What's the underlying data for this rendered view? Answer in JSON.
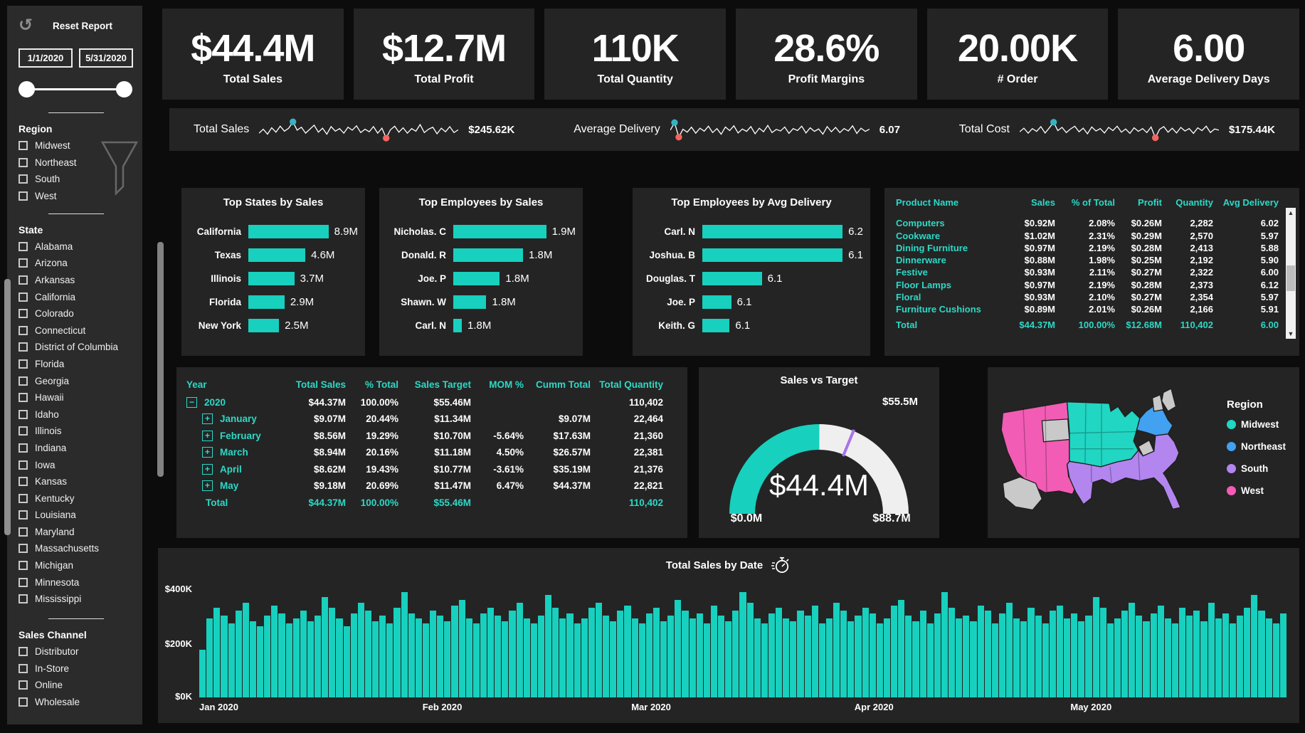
{
  "accent": "#17d0be",
  "teal_text": "#2cd9c7",
  "spark_max_color": "#36b3c0",
  "spark_min_color": "#f4655f",
  "gauge_rest_color": "#efefef",
  "gauge_target_color": "#a873e9",
  "sidebar": {
    "reset_label": "Reset Report",
    "date_from": "1/1/2020",
    "date_to": "5/31/2020",
    "sections": {
      "region": {
        "title": "Region",
        "items": [
          "Midwest",
          "Northeast",
          "South",
          "West"
        ]
      },
      "state": {
        "title": "State",
        "items": [
          "Alabama",
          "Arizona",
          "Arkansas",
          "California",
          "Colorado",
          "Connecticut",
          "District of Columbia",
          "Florida",
          "Georgia",
          "Hawaii",
          "Idaho",
          "Illinois",
          "Indiana",
          "Iowa",
          "Kansas",
          "Kentucky",
          "Louisiana",
          "Maryland",
          "Massachusetts",
          "Michigan",
          "Minnesota",
          "Mississippi"
        ]
      },
      "channel": {
        "title": "Sales Channel",
        "items": [
          "Distributor",
          "In-Store",
          "Online",
          "Wholesale"
        ]
      }
    }
  },
  "kpis": [
    {
      "value": "$44.4M",
      "label": "Total Sales"
    },
    {
      "value": "$12.7M",
      "label": "Total Profit"
    },
    {
      "value": "110K",
      "label": "Total Quantity"
    },
    {
      "value": "28.6%",
      "label": "Profit Margins"
    },
    {
      "value": "20.00K",
      "label": "# Order"
    },
    {
      "value": "6.00",
      "label": "Average Delivery Days"
    }
  ],
  "chart_data": {
    "sparklines": [
      {
        "type": "line",
        "label": "Total Sales",
        "value": "$245.62K",
        "max_idx": 8,
        "min_idx": 30,
        "points": [
          0.35,
          0.55,
          0.3,
          0.62,
          0.4,
          0.7,
          0.45,
          0.6,
          0.92,
          0.5,
          0.65,
          0.35,
          0.55,
          0.75,
          0.4,
          0.6,
          0.3,
          0.68,
          0.45,
          0.58,
          0.35,
          0.65,
          0.5,
          0.72,
          0.38,
          0.55,
          0.42,
          0.68,
          0.35,
          0.6,
          0.1,
          0.52,
          0.7,
          0.4,
          0.62,
          0.35,
          0.58,
          0.45,
          0.78,
          0.38,
          0.55,
          0.65,
          0.32,
          0.6,
          0.42,
          0.68,
          0.38,
          0.52
        ]
      },
      {
        "type": "line",
        "label": "Average Delivery",
        "value": "6.07",
        "max_idx": 1,
        "min_idx": 2,
        "points": [
          0.5,
          0.88,
          0.15,
          0.55,
          0.4,
          0.65,
          0.35,
          0.6,
          0.45,
          0.7,
          0.38,
          0.58,
          0.3,
          0.66,
          0.48,
          0.72,
          0.36,
          0.56,
          0.44,
          0.68,
          0.32,
          0.6,
          0.42,
          0.74,
          0.38,
          0.54,
          0.46,
          0.66,
          0.34,
          0.58,
          0.48,
          0.7,
          0.36,
          0.62,
          0.44,
          0.56,
          0.3,
          0.68,
          0.42,
          0.64,
          0.38,
          0.58,
          0.46,
          0.72,
          0.34,
          0.6,
          0.44,
          0.55
        ]
      },
      {
        "type": "line",
        "label": "Total Cost",
        "value": "$175.44K",
        "max_idx": 8,
        "min_idx": 32,
        "points": [
          0.42,
          0.6,
          0.35,
          0.58,
          0.44,
          0.68,
          0.36,
          0.62,
          0.9,
          0.48,
          0.64,
          0.38,
          0.56,
          0.7,
          0.42,
          0.6,
          0.32,
          0.66,
          0.46,
          0.58,
          0.36,
          0.64,
          0.48,
          0.7,
          0.4,
          0.56,
          0.34,
          0.62,
          0.44,
          0.58,
          0.38,
          0.66,
          0.12,
          0.54,
          0.68,
          0.4,
          0.6,
          0.36,
          0.64,
          0.46,
          0.58,
          0.34,
          0.62,
          0.48,
          0.7,
          0.38,
          0.56,
          0.5
        ]
      }
    ],
    "top_states": {
      "type": "bar",
      "title": "Top States by Sales",
      "rows": [
        {
          "label": "California",
          "value": "8.9M",
          "pct": 100
        },
        {
          "label": "Texas",
          "value": "4.6M",
          "pct": 52
        },
        {
          "label": "Illinois",
          "value": "3.7M",
          "pct": 42
        },
        {
          "label": "Florida",
          "value": "2.9M",
          "pct": 33
        },
        {
          "label": "New York",
          "value": "2.5M",
          "pct": 28
        }
      ]
    },
    "top_emp_sales": {
      "type": "bar",
      "title": "Top Employees by Sales",
      "rows": [
        {
          "label": "Nicholas. C",
          "value": "1.9M",
          "pct": 100
        },
        {
          "label": "Donald. R",
          "value": "1.8M",
          "pct": 57
        },
        {
          "label": "Joe. P",
          "value": "1.8M",
          "pct": 38
        },
        {
          "label": "Shawn. W",
          "value": "1.8M",
          "pct": 27
        },
        {
          "label": "Carl. N",
          "value": "1.8M",
          "pct": 7
        }
      ]
    },
    "top_emp_avg": {
      "type": "bar",
      "title": "Top Employees by Avg Delivery",
      "rows": [
        {
          "label": "Carl. N",
          "value": "6.2",
          "pct": 100
        },
        {
          "label": "Joshua. B",
          "value": "6.1",
          "pct": 89
        },
        {
          "label": "Douglas. T",
          "value": "6.1",
          "pct": 37
        },
        {
          "label": "Joe. P",
          "value": "6.1",
          "pct": 18
        },
        {
          "label": "Keith. G",
          "value": "6.1",
          "pct": 17
        }
      ]
    },
    "gauge": {
      "type": "gauge",
      "title": "Sales vs Target",
      "value": 44.4,
      "max": 88.7,
      "target": 55.5,
      "value_label": "$44.4M",
      "min_label": "$0.0M",
      "max_label": "$88.7M",
      "target_label": "$55.5M"
    },
    "daily_sales": {
      "type": "bar",
      "title": "Total Sales by Date",
      "ylim": [
        0,
        400
      ],
      "yticks": [
        "$400K",
        "$200K",
        "$0K"
      ],
      "x_months": [
        "Jan 2020",
        "Feb 2020",
        "Mar 2020",
        "Apr 2020",
        "May 2020"
      ],
      "month_start_frac": [
        0,
        0.2053,
        0.3974,
        0.6026,
        0.8013
      ],
      "values_k": [
        180,
        300,
        340,
        310,
        280,
        330,
        360,
        290,
        270,
        310,
        350,
        320,
        280,
        300,
        330,
        290,
        310,
        380,
        340,
        300,
        270,
        320,
        360,
        330,
        290,
        310,
        280,
        340,
        400,
        320,
        300,
        280,
        330,
        310,
        290,
        350,
        370,
        300,
        280,
        320,
        340,
        310,
        290,
        330,
        360,
        300,
        280,
        310,
        390,
        340,
        300,
        320,
        280,
        300,
        340,
        360,
        310,
        290,
        330,
        350,
        300,
        280,
        320,
        340,
        290,
        310,
        370,
        330,
        300,
        320,
        280,
        350,
        310,
        290,
        330,
        400,
        360,
        300,
        280,
        320,
        340,
        300,
        290,
        330,
        310,
        350,
        280,
        300,
        360,
        330,
        290,
        310,
        340,
        320,
        280,
        300,
        350,
        370,
        310,
        290,
        330,
        280,
        320,
        400,
        340,
        300,
        310,
        290,
        350,
        330,
        280,
        320,
        360,
        300,
        290,
        340,
        310,
        280,
        330,
        350,
        300,
        320,
        290,
        310,
        380,
        340,
        280,
        300,
        330,
        360,
        310,
        290,
        320,
        350,
        300,
        280,
        340,
        310,
        330,
        290,
        360,
        300,
        320,
        280,
        310,
        340,
        390,
        330,
        300,
        280,
        320
      ]
    }
  },
  "product_table": {
    "columns": [
      "Product Name",
      "Sales",
      "% of Total",
      "Profit",
      "Quantity",
      "Avg Delivery"
    ],
    "rows": [
      [
        "Computers",
        "$0.92M",
        "2.08%",
        "$0.26M",
        "2,282",
        "6.02"
      ],
      [
        "Cookware",
        "$1.02M",
        "2.31%",
        "$0.29M",
        "2,570",
        "5.97"
      ],
      [
        "Dining Furniture",
        "$0.97M",
        "2.19%",
        "$0.28M",
        "2,413",
        "5.88"
      ],
      [
        "Dinnerware",
        "$0.88M",
        "1.98%",
        "$0.25M",
        "2,192",
        "5.90"
      ],
      [
        "Festive",
        "$0.93M",
        "2.11%",
        "$0.27M",
        "2,322",
        "6.00"
      ],
      [
        "Floor Lamps",
        "$0.97M",
        "2.19%",
        "$0.28M",
        "2,373",
        "6.12"
      ],
      [
        "Floral",
        "$0.93M",
        "2.10%",
        "$0.27M",
        "2,354",
        "5.97"
      ],
      [
        "Furniture Cushions",
        "$0.89M",
        "2.01%",
        "$0.26M",
        "2,166",
        "5.91"
      ]
    ],
    "total_row": [
      "Total",
      "$44.37M",
      "100.00%",
      "$12.68M",
      "110,402",
      "6.00"
    ]
  },
  "year_table": {
    "columns": [
      "Year",
      "Total Sales",
      "% Total",
      "Sales Target",
      "MOM %",
      "Cumm Total",
      "Total Quantity"
    ],
    "rows": [
      {
        "icon": "−",
        "label": "2020",
        "level": 0,
        "cls": "yt-year",
        "cells": [
          "$44.37M",
          "100.00%",
          "$55.46M",
          "",
          "",
          "110,402"
        ]
      },
      {
        "icon": "+",
        "label": "January",
        "level": 1,
        "cls": "yt-month",
        "cells": [
          "$9.07M",
          "20.44%",
          "$11.34M",
          "",
          "$9.07M",
          "22,464"
        ]
      },
      {
        "icon": "+",
        "label": "February",
        "level": 1,
        "cls": "yt-month",
        "cells": [
          "$8.56M",
          "19.29%",
          "$10.70M",
          "-5.64%",
          "$17.63M",
          "21,360"
        ]
      },
      {
        "icon": "+",
        "label": "March",
        "level": 1,
        "cls": "yt-month",
        "cells": [
          "$8.94M",
          "20.16%",
          "$11.18M",
          "4.50%",
          "$26.57M",
          "22,381"
        ]
      },
      {
        "icon": "+",
        "label": "April",
        "level": 1,
        "cls": "yt-month",
        "cells": [
          "$8.62M",
          "19.43%",
          "$10.77M",
          "-3.61%",
          "$35.19M",
          "21,376"
        ]
      },
      {
        "icon": "+",
        "label": "May",
        "level": 1,
        "cls": "yt-month",
        "cells": [
          "$9.18M",
          "20.69%",
          "$11.47M",
          "6.47%",
          "$44.37M",
          "22,821"
        ]
      },
      {
        "icon": "",
        "label": "Total",
        "level": 0,
        "cls": "yt-grand",
        "cells": [
          "$44.37M",
          "100.00%",
          "$55.46M",
          "",
          "",
          "110,402"
        ]
      }
    ]
  },
  "map": {
    "legend_title": "Region",
    "colors": {
      "midwest": "#21d6c2",
      "northeast": "#42a1f0",
      "south": "#b286ee",
      "west": "#f25cb5",
      "neutral": "#c9c9c9"
    },
    "legend": [
      {
        "label": "Midwest",
        "key": "midwest"
      },
      {
        "label": "Northeast",
        "key": "northeast"
      },
      {
        "label": "South",
        "key": "south"
      },
      {
        "label": "West",
        "key": "west"
      }
    ]
  }
}
